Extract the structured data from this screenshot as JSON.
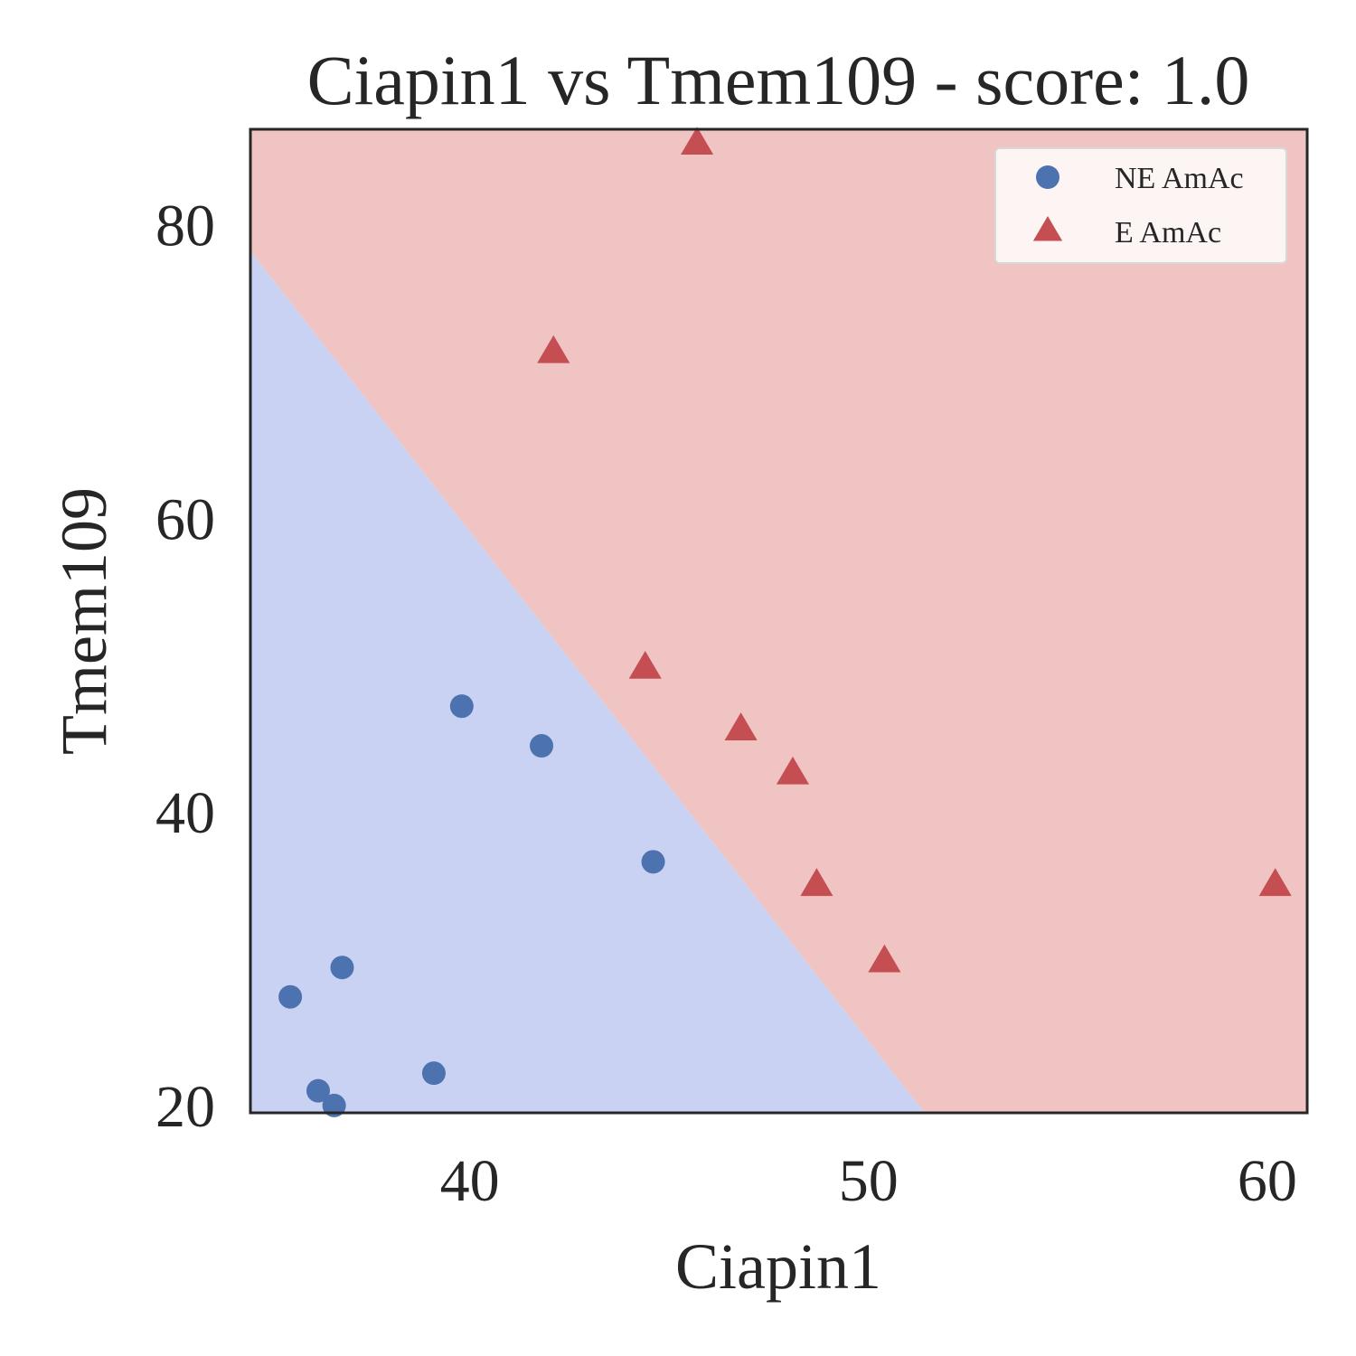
{
  "chart_data": {
    "type": "scatter",
    "title": "Ciapin1 vs Tmem109 - score: 1.0",
    "xlabel": "Ciapin1",
    "ylabel": "Tmem109",
    "xlim": [
      34.5,
      61.0
    ],
    "ylim": [
      19.5,
      86.5
    ],
    "xticks": [
      40,
      50,
      60
    ],
    "yticks": [
      20,
      40,
      60,
      80
    ],
    "grid": false,
    "legend_position": "top-right",
    "decision_boundary": {
      "points": [
        [
          34.5,
          78.2
        ],
        [
          51.4,
          19.5
        ]
      ],
      "region_colors": {
        "below": "#c9d2f2",
        "above": "#efc4c3"
      }
    },
    "series": [
      {
        "name": "NE AmAc",
        "marker": "circle",
        "color": "#4c72b0",
        "x": [
          35.5,
          36.2,
          36.6,
          36.8,
          39.1,
          39.8,
          41.8,
          44.6
        ],
        "y": [
          27.4,
          21.0,
          20.0,
          29.4,
          22.2,
          47.2,
          44.5,
          36.6
        ]
      },
      {
        "name": "E AmAc",
        "marker": "triangle",
        "color": "#c44e52",
        "x": [
          45.7,
          42.1,
          44.4,
          46.8,
          48.1,
          48.7,
          50.4,
          60.2
        ],
        "y": [
          85.5,
          71.3,
          49.8,
          45.6,
          42.6,
          35.0,
          29.8,
          35.0
        ]
      }
    ]
  }
}
